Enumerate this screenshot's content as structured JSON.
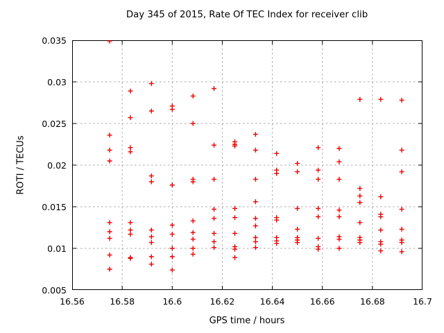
{
  "colors": {
    "marker": "#ee0000",
    "grid": "#a8a8a8",
    "axis": "#000000",
    "background": "#ffffff",
    "text": "#000000"
  },
  "chart_data": {
    "type": "scatter",
    "title": "Day 345 of 2015, Rate Of TEC Index for receiver clib",
    "xlabel": "GPS time / hours",
    "ylabel": "ROTI / TECUs",
    "xlim": [
      16.56,
      16.7
    ],
    "ylim": [
      0.005,
      0.035
    ],
    "xticks": [
      16.56,
      16.58,
      16.6,
      16.62,
      16.64,
      16.66,
      16.68,
      16.7
    ],
    "xtick_labels": [
      "16.56",
      "16.58",
      "16.6",
      "16.62",
      "16.64",
      "16.66",
      "16.68",
      "16.7"
    ],
    "yticks": [
      0.005,
      0.01,
      0.015,
      0.02,
      0.025,
      0.03,
      0.035
    ],
    "ytick_labels": [
      "0.005",
      "0.01",
      "0.015",
      "0.02",
      "0.025",
      "0.03",
      "0.035"
    ],
    "grid": true,
    "legend_position": "none",
    "marker": {
      "shape": "plus",
      "size": 7,
      "color": "#ee0000"
    },
    "series": [
      {
        "name": "ROTI",
        "points": [
          [
            16.575,
            0.0349
          ],
          [
            16.575,
            0.0236
          ],
          [
            16.575,
            0.0218
          ],
          [
            16.575,
            0.0205
          ],
          [
            16.575,
            0.0131
          ],
          [
            16.575,
            0.012
          ],
          [
            16.575,
            0.0112
          ],
          [
            16.575,
            0.0092
          ],
          [
            16.575,
            0.0075
          ],
          [
            16.5833,
            0.0289
          ],
          [
            16.5833,
            0.0257
          ],
          [
            16.5833,
            0.0221
          ],
          [
            16.5833,
            0.0216
          ],
          [
            16.5833,
            0.0131
          ],
          [
            16.5833,
            0.0122
          ],
          [
            16.5833,
            0.0117
          ],
          [
            16.5833,
            0.0089
          ],
          [
            16.5833,
            0.0088
          ],
          [
            16.5917,
            0.0298
          ],
          [
            16.5917,
            0.0265
          ],
          [
            16.5917,
            0.0187
          ],
          [
            16.5917,
            0.018
          ],
          [
            16.5917,
            0.0122
          ],
          [
            16.5917,
            0.0114
          ],
          [
            16.5917,
            0.0107
          ],
          [
            16.5917,
            0.009
          ],
          [
            16.5917,
            0.0081
          ],
          [
            16.6,
            0.0271
          ],
          [
            16.6,
            0.0267
          ],
          [
            16.6,
            0.0176
          ],
          [
            16.6,
            0.0176
          ],
          [
            16.6,
            0.0128
          ],
          [
            16.6,
            0.0117
          ],
          [
            16.6,
            0.01
          ],
          [
            16.6,
            0.009
          ],
          [
            16.6,
            0.0074
          ],
          [
            16.6083,
            0.0283
          ],
          [
            16.6083,
            0.025
          ],
          [
            16.6083,
            0.0183
          ],
          [
            16.6083,
            0.018
          ],
          [
            16.6083,
            0.0133
          ],
          [
            16.6083,
            0.0119
          ],
          [
            16.6083,
            0.0111
          ],
          [
            16.6083,
            0.01
          ],
          [
            16.6083,
            0.0093
          ],
          [
            16.6167,
            0.0292
          ],
          [
            16.6167,
            0.0224
          ],
          [
            16.6167,
            0.0183
          ],
          [
            16.6167,
            0.0147
          ],
          [
            16.6167,
            0.0136
          ],
          [
            16.6167,
            0.0118
          ],
          [
            16.6167,
            0.0108
          ],
          [
            16.6167,
            0.0101
          ],
          [
            16.625,
            0.0228
          ],
          [
            16.625,
            0.0225
          ],
          [
            16.625,
            0.0223
          ],
          [
            16.625,
            0.0148
          ],
          [
            16.625,
            0.0137
          ],
          [
            16.625,
            0.0118
          ],
          [
            16.625,
            0.0102
          ],
          [
            16.625,
            0.0099
          ],
          [
            16.625,
            0.0089
          ],
          [
            16.6333,
            0.0237
          ],
          [
            16.6333,
            0.0218
          ],
          [
            16.6333,
            0.0183
          ],
          [
            16.6333,
            0.0156
          ],
          [
            16.6333,
            0.0136
          ],
          [
            16.6333,
            0.0127
          ],
          [
            16.6333,
            0.0113
          ],
          [
            16.6333,
            0.0108
          ],
          [
            16.6333,
            0.0101
          ],
          [
            16.6417,
            0.0214
          ],
          [
            16.6417,
            0.0194
          ],
          [
            16.6417,
            0.019
          ],
          [
            16.6417,
            0.0137
          ],
          [
            16.6417,
            0.0134
          ],
          [
            16.6417,
            0.0113
          ],
          [
            16.6417,
            0.0109
          ],
          [
            16.6417,
            0.0106
          ],
          [
            16.65,
            0.0202
          ],
          [
            16.65,
            0.0192
          ],
          [
            16.65,
            0.0148
          ],
          [
            16.65,
            0.0123
          ],
          [
            16.65,
            0.0113
          ],
          [
            16.65,
            0.011
          ],
          [
            16.65,
            0.0107
          ],
          [
            16.6583,
            0.0221
          ],
          [
            16.6583,
            0.0194
          ],
          [
            16.6583,
            0.0183
          ],
          [
            16.6583,
            0.0148
          ],
          [
            16.6583,
            0.0138
          ],
          [
            16.6583,
            0.0112
          ],
          [
            16.6583,
            0.0102
          ],
          [
            16.6583,
            0.0099
          ],
          [
            16.6667,
            0.022
          ],
          [
            16.6667,
            0.0204
          ],
          [
            16.6667,
            0.0183
          ],
          [
            16.6667,
            0.0146
          ],
          [
            16.6667,
            0.0138
          ],
          [
            16.6667,
            0.0114
          ],
          [
            16.6667,
            0.0111
          ],
          [
            16.6667,
            0.01
          ],
          [
            16.675,
            0.0279
          ],
          [
            16.675,
            0.0172
          ],
          [
            16.675,
            0.0163
          ],
          [
            16.675,
            0.0155
          ],
          [
            16.675,
            0.0131
          ],
          [
            16.675,
            0.0113
          ],
          [
            16.675,
            0.011
          ],
          [
            16.675,
            0.0107
          ],
          [
            16.6833,
            0.0279
          ],
          [
            16.6833,
            0.0162
          ],
          [
            16.6833,
            0.0141
          ],
          [
            16.6833,
            0.0138
          ],
          [
            16.6833,
            0.0122
          ],
          [
            16.6833,
            0.0108
          ],
          [
            16.6833,
            0.0105
          ],
          [
            16.6833,
            0.0097
          ],
          [
            16.6917,
            0.0278
          ],
          [
            16.6917,
            0.0218
          ],
          [
            16.6917,
            0.0192
          ],
          [
            16.6917,
            0.0147
          ],
          [
            16.6917,
            0.0123
          ],
          [
            16.6917,
            0.011
          ],
          [
            16.6917,
            0.0107
          ],
          [
            16.6917,
            0.0096
          ]
        ]
      }
    ]
  }
}
